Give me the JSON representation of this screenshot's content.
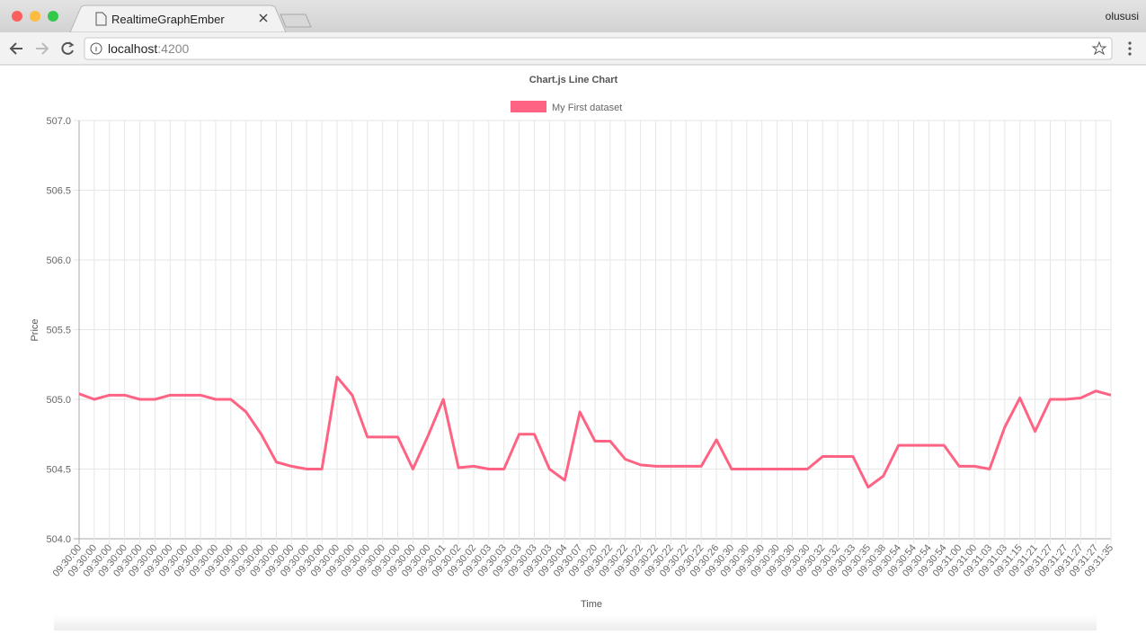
{
  "browser": {
    "tab_title": "RealtimeGraphEmber",
    "user": "olususi",
    "url_host": "localhost",
    "url_port": ":4200"
  },
  "chart_data": {
    "type": "line",
    "title": "Chart.js Line Chart",
    "x_label": "Time",
    "y_label": "Price",
    "categories": [
      "09:30:00",
      "09:30:00",
      "09:30:00",
      "09:30:00",
      "09:30:00",
      "09:30:00",
      "09:30:00",
      "09:30:00",
      "09:30:00",
      "09:30:00",
      "09:30:00",
      "09:30:00",
      "09:30:00",
      "09:30:00",
      "09:30:00",
      "09:30:00",
      "09:30:00",
      "09:30:00",
      "09:30:00",
      "09:30:00",
      "09:30:00",
      "09:30:00",
      "09:30:00",
      "09:30:00",
      "09:30:01",
      "09:30:02",
      "09:30:02",
      "09:30:03",
      "09:30:03",
      "09:30:03",
      "09:30:03",
      "09:30:03",
      "09:30:04",
      "09:30:07",
      "09:30:20",
      "09:30:22",
      "09:30:22",
      "09:30:22",
      "09:30:22",
      "09:30:22",
      "09:30:22",
      "09:30:22",
      "09:30:26",
      "09:30:30",
      "09:30:30",
      "09:30:30",
      "09:30:30",
      "09:30:30",
      "09:30:30",
      "09:30:32",
      "09:30:32",
      "09:30:33",
      "09:30:35",
      "09:30:38",
      "09:30:54",
      "09:30:54",
      "09:30:54",
      "09:30:54",
      "09:31:00",
      "09:31:00",
      "09:31:03",
      "09:31:03",
      "09:31:15",
      "09:31:21",
      "09:31:27",
      "09:31:27",
      "09:31:27",
      "09:31:27",
      "09:31:35"
    ],
    "series": [
      {
        "name": "My First dataset",
        "color": "#ff6384",
        "values": [
          505.04,
          505.0,
          505.03,
          505.03,
          505.0,
          505.0,
          505.03,
          505.03,
          505.03,
          505.0,
          505.0,
          504.91,
          504.75,
          504.55,
          504.52,
          504.5,
          504.5,
          505.16,
          505.03,
          504.73,
          504.73,
          504.73,
          504.5,
          504.74,
          505.0,
          504.51,
          504.52,
          504.5,
          504.5,
          504.75,
          504.75,
          504.5,
          504.42,
          504.91,
          504.7,
          504.7,
          504.57,
          504.53,
          504.52,
          504.52,
          504.52,
          504.52,
          504.71,
          504.5,
          504.5,
          504.5,
          504.5,
          504.5,
          504.5,
          504.59,
          504.59,
          504.59,
          504.37,
          504.45,
          504.67,
          504.67,
          504.67,
          504.67,
          504.52,
          504.52,
          504.5,
          504.8,
          505.01,
          504.77,
          505.0,
          505.0,
          505.01,
          505.06,
          505.03
        ]
      }
    ],
    "ylim": [
      504,
      507
    ],
    "yticks": [
      {
        "value": 504,
        "label": "504.0"
      },
      504.5,
      {
        "value": 505,
        "label": "505.0"
      },
      505.5,
      {
        "value": 506,
        "label": "506.0"
      },
      506.5,
      {
        "value": 507,
        "label": "507.0"
      }
    ],
    "grid": true,
    "legend": "top"
  }
}
